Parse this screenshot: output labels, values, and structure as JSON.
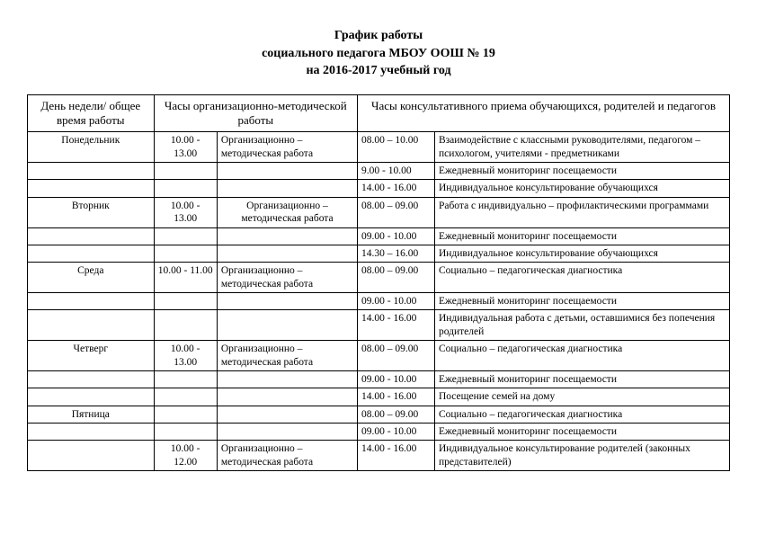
{
  "title": {
    "line1": "График работы",
    "line2": "социального педагога МБОУ ООШ № 19",
    "line3": "на 2016-2017 учебный год"
  },
  "headers": {
    "col1": "День недели/ общее время работы",
    "col2": "Часы организационно-методической работы",
    "col3": "Часы консультативного приема обучающихся, родителей и педагогов"
  },
  "rows": [
    {
      "day": "Понедельник",
      "t1": "10.00 - 13.00",
      "d1": "Организационно – методическая работа",
      "t2": "08.00 – 10.00",
      "d2": "Взаимодействие с классными руководителями, педагогом – психологом, учителями - предметниками"
    },
    {
      "day": "",
      "t1": "",
      "d1": "",
      "t2": "9.00 - 10.00",
      "d2": "Ежедневный мониторинг посещаемости"
    },
    {
      "day": "",
      "t1": "",
      "d1": "",
      "t2": "14.00 - 16.00",
      "d2": "Индивидуальное консультирование обучающихся"
    },
    {
      "day": "Вторник",
      "t1": "10.00 - 13.00",
      "d1": "Организационно – методическая работа",
      "t2": "08.00 – 09.00",
      "d2": "Работа с индивидуально – профилактическими программами",
      "d1center": true
    },
    {
      "day": "",
      "t1": "",
      "d1": "",
      "t2": "09.00 - 10.00",
      "d2": "Ежедневный мониторинг посещаемости"
    },
    {
      "day": "",
      "t1": "",
      "d1": "",
      "t2": "14.30 – 16.00",
      "d2": "Индивидуальное консультирование обучающихся"
    },
    {
      "day": "Среда",
      "t1": "10.00 - 11.00",
      "d1": "Организационно – методическая работа",
      "t2": "08.00 – 09.00",
      "d2": "Социально – педагогическая диагностика"
    },
    {
      "day": "",
      "t1": "",
      "d1": "",
      "t2": "09.00 - 10.00",
      "d2": "Ежедневный мониторинг посещаемости"
    },
    {
      "day": "",
      "t1": "",
      "d1": "",
      "t2": "14.00 - 16.00",
      "d2": "Индивидуальная работа с детьми, оставшимися без попечения родителей"
    },
    {
      "day": "Четверг",
      "t1": "10.00 - 13.00",
      "d1": "Организационно – методическая работа",
      "t2": "08.00 – 09.00",
      "d2": "Социально – педагогическая диагностика"
    },
    {
      "day": "",
      "t1": "",
      "d1": "",
      "t2": "09.00 - 10.00",
      "d2": "Ежедневный мониторинг посещаемости"
    },
    {
      "day": "",
      "t1": "",
      "d1": "",
      "t2": "14.00 - 16.00",
      "d2": "Посещение  семей на дому"
    },
    {
      "day": "Пятница",
      "t1": "",
      "d1": "",
      "t2": "08.00 – 09.00",
      "d2": "Социально – педагогическая диагностика"
    },
    {
      "day": "",
      "t1": "",
      "d1": "",
      "t2": "09.00 - 10.00",
      "d2": "Ежедневный мониторинг посещаемости"
    },
    {
      "day": "",
      "t1": "10.00 - 12.00",
      "d1": "Организационно – методическая работа",
      "t2": "14.00 - 16.00",
      "d2": "Индивидуальное консультирование родителей (законных представителей)"
    }
  ],
  "style": {
    "cell_border": "#000000",
    "background": "#ffffff",
    "title_fontsize": 14,
    "body_fontsize": 11.5,
    "header_fontsize": 13,
    "font_family": "Times New Roman"
  }
}
